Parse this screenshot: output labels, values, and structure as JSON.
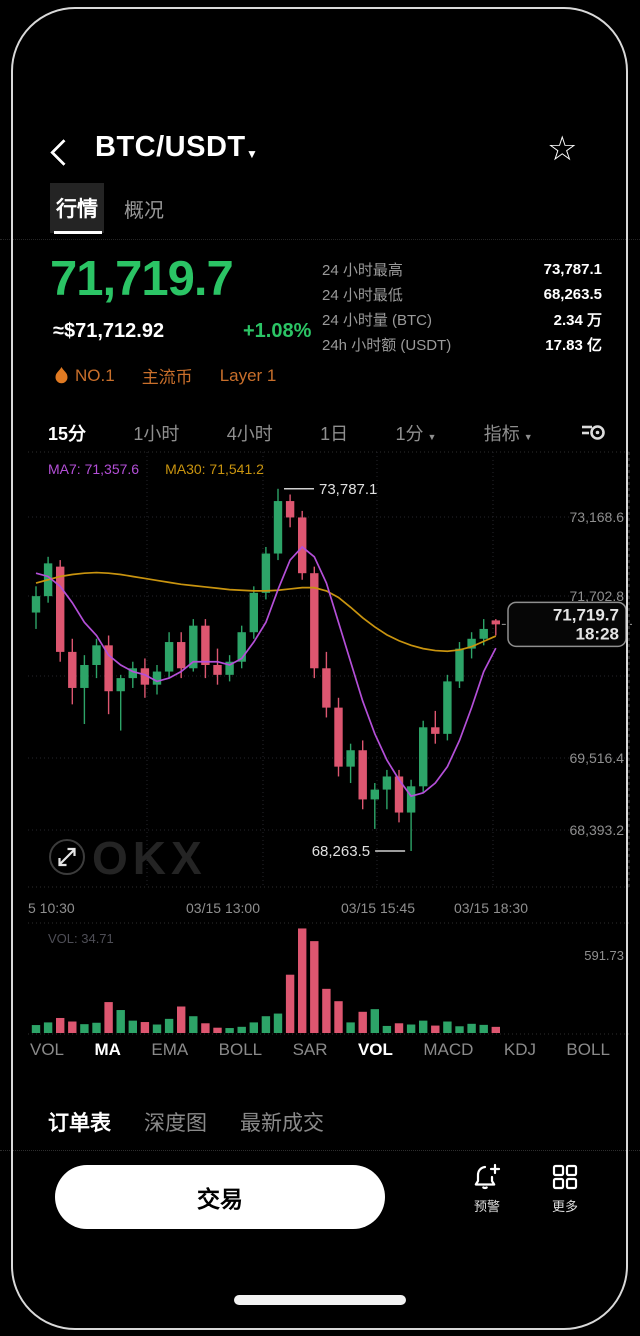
{
  "header": {
    "title": "BTC/USDT"
  },
  "tabs": {
    "market": "行情",
    "overview": "概况"
  },
  "ticker": {
    "last_price": "71,719.7",
    "fiat_value": "≈$71,712.92",
    "change_percent": "+1.08%",
    "rank_tag": "NO.1",
    "tag_mainstream": "主流币",
    "tag_layer": "Layer 1"
  },
  "stats": {
    "rows": [
      {
        "label": "24 小时最高",
        "value": "73,787.1"
      },
      {
        "label": "24 小时最低",
        "value": "68,263.5"
      },
      {
        "label": "24 小时量 (BTC)",
        "value": "2.34 万"
      },
      {
        "label": "24h 小时额 (USDT)",
        "value": "17.83 亿"
      }
    ]
  },
  "toolbar": {
    "tf1": "15分",
    "tf2": "1小时",
    "tf3": "4小时",
    "tf4": "1日",
    "tf5": "1分",
    "indicators": "指标"
  },
  "watermark": "OKX",
  "chart_data": {
    "type": "candlestick",
    "interval": "15m",
    "legend": {
      "ma7": "MA7: 71,357.6",
      "ma30": "MA30: 71,541.2",
      "vol": "VOL: 34.71",
      "vol_axis_max": "591.73"
    },
    "y_axis": {
      "labels": [
        "73,168.6",
        "71,702.8",
        "",
        "69,516.4",
        "68,393.2"
      ]
    },
    "x_axis": {
      "labels": [
        "5 10:30",
        "03/15 13:00",
        "03/15 15:45",
        "03/15 18:30"
      ]
    },
    "price_range": {
      "min": 68050,
      "max": 74150
    },
    "candles": [
      [
        71900,
        72300,
        71650,
        72150
      ],
      [
        72150,
        72750,
        72050,
        72650
      ],
      [
        72600,
        72700,
        71150,
        71300
      ],
      [
        71300,
        71500,
        70500,
        70750
      ],
      [
        70750,
        71250,
        70200,
        71100
      ],
      [
        71100,
        71500,
        70900,
        71400
      ],
      [
        71400,
        71550,
        70350,
        70700
      ],
      [
        70700,
        70950,
        70100,
        70900
      ],
      [
        70900,
        71150,
        70750,
        71050
      ],
      [
        71050,
        71200,
        70600,
        70800
      ],
      [
        70800,
        71100,
        70650,
        71000
      ],
      [
        71000,
        71600,
        70900,
        71450
      ],
      [
        71450,
        71600,
        70900,
        71050
      ],
      [
        71050,
        71800,
        71000,
        71700
      ],
      [
        71700,
        71800,
        70900,
        71100
      ],
      [
        71100,
        71350,
        70800,
        70950
      ],
      [
        70950,
        71250,
        70850,
        71150
      ],
      [
        71150,
        71700,
        71050,
        71600
      ],
      [
        71600,
        72300,
        71500,
        72200
      ],
      [
        72200,
        72900,
        72100,
        72800
      ],
      [
        72800,
        73787.1,
        72700,
        73600
      ],
      [
        73600,
        73700,
        73200,
        73350
      ],
      [
        73350,
        73450,
        72400,
        72500
      ],
      [
        72500,
        72600,
        70900,
        71050
      ],
      [
        71050,
        71300,
        70300,
        70450
      ],
      [
        70450,
        70600,
        69400,
        69550
      ],
      [
        69550,
        69900,
        69300,
        69800
      ],
      [
        69800,
        69950,
        68900,
        69050
      ],
      [
        69050,
        69300,
        68600,
        69200
      ],
      [
        69200,
        69500,
        68900,
        69400
      ],
      [
        69400,
        69500,
        68700,
        68850
      ],
      [
        68850,
        69350,
        68263.5,
        69250
      ],
      [
        69250,
        70250,
        69150,
        70150
      ],
      [
        70150,
        70400,
        69900,
        70050
      ],
      [
        70050,
        70950,
        69950,
        70850
      ],
      [
        70850,
        71450,
        70750,
        71350
      ],
      [
        71350,
        71600,
        71200,
        71500
      ],
      [
        71500,
        71800,
        71400,
        71650
      ],
      [
        71780,
        71800,
        71550,
        71719.7
      ]
    ],
    "volumes": [
      45,
      60,
      85,
      65,
      50,
      58,
      175,
      130,
      70,
      62,
      48,
      80,
      150,
      95,
      55,
      30,
      28,
      35,
      60,
      95,
      110,
      330,
      591.73,
      520,
      250,
      180,
      60,
      120,
      135,
      40,
      55,
      48,
      70,
      42,
      65,
      38,
      52,
      46,
      34.71
    ],
    "ma7_line": [
      72500,
      72450,
      72300,
      72050,
      71750,
      71550,
      71250,
      71100,
      71000,
      70950,
      70850,
      70900,
      71000,
      71150,
      71150,
      71150,
      71100,
      71200,
      71450,
      71750,
      72250,
      72700,
      72900,
      72750,
      72350,
      71750,
      71150,
      70550,
      70050,
      69650,
      69350,
      69100,
      69150,
      69300,
      69550,
      69950,
      70450,
      71000,
      71357.6
    ],
    "ma30_line": [
      72350,
      72400,
      72450,
      72480,
      72500,
      72510,
      72500,
      72480,
      72450,
      72420,
      72390,
      72360,
      72330,
      72310,
      72290,
      72270,
      72250,
      72240,
      72230,
      72230,
      72240,
      72260,
      72280,
      72280,
      72230,
      72130,
      71980,
      71820,
      71680,
      71560,
      71470,
      71400,
      71350,
      71320,
      71310,
      71330,
      71380,
      71460,
      71541.2
    ],
    "annotations": {
      "high": {
        "label": "73,787.1",
        "price": 73787.1,
        "index": 20
      },
      "low": {
        "label": "68,263.5",
        "price": 68263.5,
        "index": 31
      },
      "current": {
        "label": "71,719.7",
        "time": "18:28",
        "price": 71719.7
      }
    },
    "colors": {
      "up": "#2da468",
      "down": "#dd5670",
      "ma7": "#b44fd8",
      "ma30": "#c9940f"
    }
  },
  "indicator_bar": {
    "items": [
      {
        "label": "VOL",
        "active": false
      },
      {
        "label": "MA",
        "active": true
      },
      {
        "label": "EMA",
        "active": false
      },
      {
        "label": "BOLL",
        "active": false
      },
      {
        "label": "SAR",
        "active": false
      },
      {
        "label": "VOL",
        "active": true
      },
      {
        "label": "MACD",
        "active": false
      },
      {
        "label": "KDJ",
        "active": false
      },
      {
        "label": "BOLL",
        "active": false
      }
    ]
  },
  "bottom_tabs": {
    "order_book": "订单表",
    "depth": "深度图",
    "trades": "最新成交"
  },
  "action_bar": {
    "trade": "交易",
    "alert": "预警",
    "more": "更多"
  }
}
